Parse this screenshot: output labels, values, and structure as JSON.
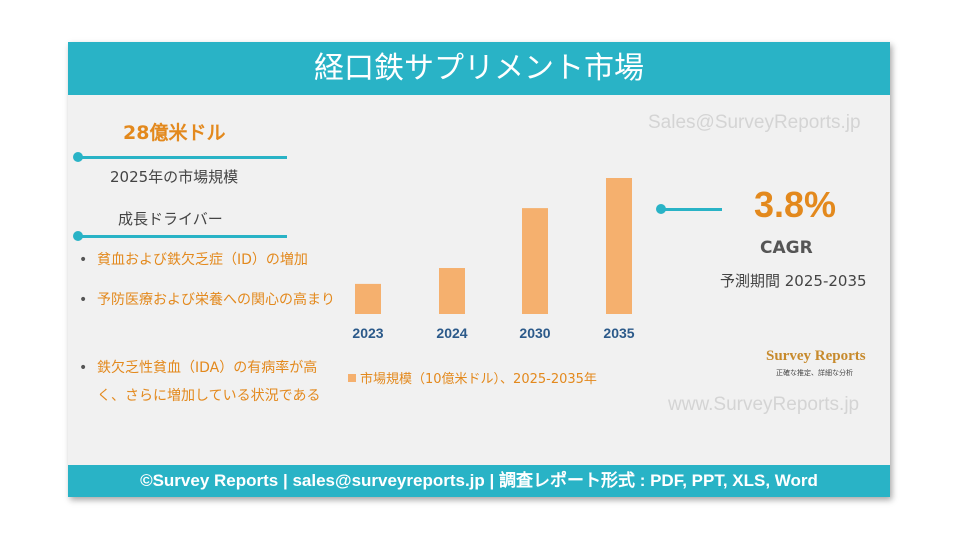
{
  "header": {
    "title": "経口鉄サプリメント市場"
  },
  "watermarks": [
    "Sales@SurveyReports.jp",
    "www.SurveyReports.jp"
  ],
  "market_size": {
    "value": "28億米ドル",
    "label": "2025年の市場規模"
  },
  "drivers": {
    "title": "成長ドライバー",
    "items": [
      "貧血および鉄欠乏症（ID）の増加",
      "予防医療および栄養への関心の高まり",
      "鉄欠乏性貧血（IDA）の有病率が高く、さらに増加している状況である"
    ]
  },
  "chart_data": {
    "type": "bar",
    "categories": [
      "2023",
      "2024",
      "2030",
      "2035"
    ],
    "series": [
      {
        "name": "市場規模（10億米ドル）、2025-2035年",
        "color": "#f5b06e",
        "values": [
          0.93,
          1.42,
          3.27,
          4.2
        ]
      }
    ]
  },
  "cagr": {
    "value": "3.8%",
    "label": "CAGR",
    "period": "予測期間 2025-2035"
  },
  "logo": {
    "name": "Survey Reports",
    "tagline": "正確な推定、詳細な分析"
  },
  "footer": "©Survey Reports | sales@surveyreports.jp | 調査レポート形式 : PDF, PPT, XLS, Word"
}
